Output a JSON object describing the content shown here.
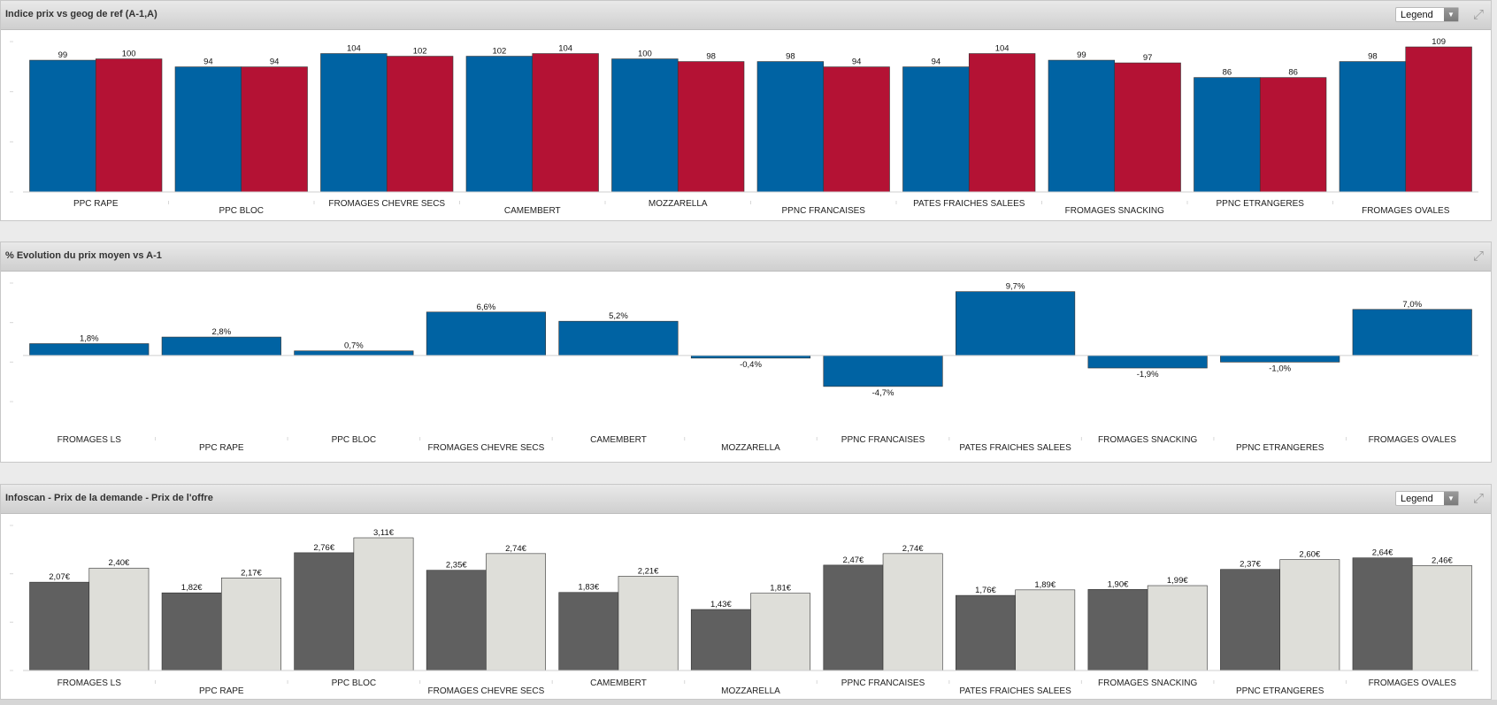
{
  "legend_label": "Legend",
  "panels": [
    {
      "title": "Indice prix vs geog de ref (A-1,A)",
      "has_legend": true
    },
    {
      "title": "% Evolution du prix moyen vs A-1",
      "has_legend": false
    },
    {
      "title": "Infoscan - Prix de la demande - Prix de l'offre",
      "has_legend": true
    }
  ],
  "chart_data": [
    {
      "type": "bar",
      "title": "Indice prix vs geog de ref (A-1,A)",
      "categories": [
        "PPC RAPE",
        "PPC BLOC",
        "FROMAGES CHEVRE SECS",
        "CAMEMBERT",
        "MOZZARELLA",
        "PPNC FRANCAISES",
        "PATES FRAICHES SALEES",
        "FROMAGES SNACKING",
        "PPNC ETRANGERES",
        "FROMAGES OVALES"
      ],
      "series": [
        {
          "values": [
            99,
            94,
            104,
            102,
            100,
            98,
            94,
            99,
            86,
            98
          ],
          "labels": [
            "99",
            "94",
            "104",
            "102",
            "100",
            "98",
            "94",
            "99",
            "86",
            "98"
          ],
          "color": "#0063a3"
        },
        {
          "values": [
            100,
            94,
            102,
            104,
            98,
            94,
            104,
            97,
            86,
            109
          ],
          "labels": [
            "100",
            "94",
            "102",
            "104",
            "98",
            "94",
            "104",
            "97",
            "86",
            "109"
          ],
          "color": "#b41234"
        }
      ],
      "ylim": [
        0,
        113
      ],
      "grid": false,
      "legend": "hidden"
    },
    {
      "type": "bar",
      "title": "% Evolution du prix moyen vs A-1",
      "categories": [
        "FROMAGES LS",
        "PPC RAPE",
        "PPC BLOC",
        "FROMAGES CHEVRE SECS",
        "CAMEMBERT",
        "MOZZARELLA",
        "PPNC FRANCAISES",
        "PATES FRAICHES SALEES",
        "FROMAGES SNACKING",
        "PPNC ETRANGERES",
        "FROMAGES OVALES"
      ],
      "series": [
        {
          "values": [
            1.8,
            2.8,
            0.7,
            6.6,
            5.2,
            -0.4,
            -4.7,
            9.7,
            -1.9,
            -1.0,
            7.0
          ],
          "labels": [
            "1,8%",
            "2,8%",
            "0,7%",
            "6,6%",
            "5,2%",
            "-0,4%",
            "-4,7%",
            "9,7%",
            "-1,9%",
            "-1,0%",
            "7,0%"
          ],
          "color": "#0063a3"
        }
      ],
      "ylim": [
        -7,
        11
      ],
      "grid": false
    },
    {
      "type": "bar",
      "title": "Infoscan - Prix de la demande - Prix de l'offre",
      "categories": [
        "FROMAGES LS",
        "PPC RAPE",
        "PPC BLOC",
        "FROMAGES CHEVRE SECS",
        "CAMEMBERT",
        "MOZZARELLA",
        "PPNC FRANCAISES",
        "PATES FRAICHES SALEES",
        "FROMAGES SNACKING",
        "PPNC ETRANGERES",
        "FROMAGES OVALES"
      ],
      "series": [
        {
          "values": [
            2.07,
            1.82,
            2.76,
            2.35,
            1.83,
            1.43,
            2.47,
            1.76,
            1.9,
            2.37,
            2.64
          ],
          "labels": [
            "2,07€",
            "1,82€",
            "2,76€",
            "2,35€",
            "1,83€",
            "1,43€",
            "2,47€",
            "1,76€",
            "1,90€",
            "2,37€",
            "2,64€"
          ],
          "color": "#606060"
        },
        {
          "values": [
            2.4,
            2.17,
            3.11,
            2.74,
            2.21,
            1.81,
            2.74,
            1.89,
            1.99,
            2.6,
            2.46
          ],
          "labels": [
            "2,40€",
            "2,17€",
            "3,11€",
            "2,74€",
            "2,21€",
            "1,81€",
            "2,74€",
            "1,89€",
            "1,99€",
            "2,60€",
            "2,46€"
          ],
          "color": "#deded9"
        }
      ],
      "ylim": [
        0,
        3.4
      ],
      "grid": false,
      "legend": "hidden"
    }
  ]
}
